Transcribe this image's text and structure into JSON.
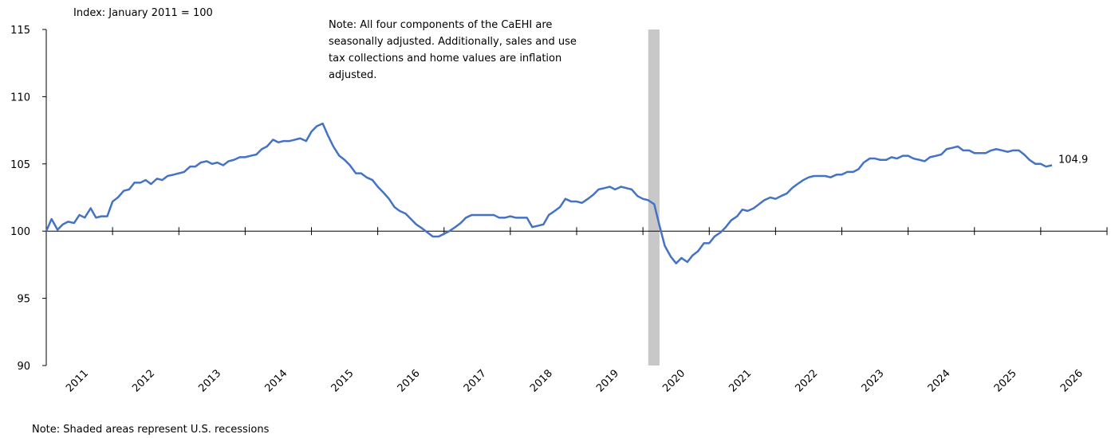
{
  "chart_data": {
    "type": "line",
    "y_axis_label": "Index: January 2011 = 100",
    "note_lines": [
      "Note: All four components of the CaEHI are",
      "seasonally adjusted. Additionally, sales and use",
      "tax collections and home values are inflation",
      "adjusted."
    ],
    "footnote": "Note: Shaded areas represent U.S. recessions",
    "shaded_regions": [
      [
        2020.08,
        2020.25
      ]
    ],
    "shade_color": "#c8c8c8",
    "xlim": [
      2011,
      2027
    ],
    "xticks": [
      {
        "value": 2011.5,
        "label": "2011"
      },
      {
        "value": 2012.5,
        "label": "2012"
      },
      {
        "value": 2013.5,
        "label": "2013"
      },
      {
        "value": 2014.5,
        "label": "2014"
      },
      {
        "value": 2015.5,
        "label": "2015"
      },
      {
        "value": 2016.5,
        "label": "2016"
      },
      {
        "value": 2017.5,
        "label": "2017"
      },
      {
        "value": 2018.5,
        "label": "2018"
      },
      {
        "value": 2019.5,
        "label": "2019"
      },
      {
        "value": 2020.5,
        "label": "2020"
      },
      {
        "value": 2021.5,
        "label": "2021"
      },
      {
        "value": 2022.5,
        "label": "2022"
      },
      {
        "value": 2023.5,
        "label": "2023"
      },
      {
        "value": 2024.5,
        "label": "2024"
      },
      {
        "value": 2025.5,
        "label": "2025"
      },
      {
        "value": 2026.5,
        "label": "2026"
      }
    ],
    "ylim": [
      90,
      115
    ],
    "yticks": [
      90,
      95,
      100,
      105,
      110,
      115
    ],
    "x_axis_crosses": 100,
    "x": [
      2011.0,
      2011.08,
      2011.17,
      2011.25,
      2011.33,
      2011.42,
      2011.5,
      2011.58,
      2011.67,
      2011.75,
      2011.83,
      2011.92,
      2012.0,
      2012.08,
      2012.17,
      2012.25,
      2012.33,
      2012.42,
      2012.5,
      2012.58,
      2012.67,
      2012.75,
      2012.83,
      2012.92,
      2013.0,
      2013.08,
      2013.17,
      2013.25,
      2013.33,
      2013.42,
      2013.5,
      2013.58,
      2013.67,
      2013.75,
      2013.83,
      2013.92,
      2014.0,
      2014.08,
      2014.17,
      2014.25,
      2014.33,
      2014.42,
      2014.5,
      2014.58,
      2014.67,
      2014.75,
      2014.83,
      2014.92,
      2015.0,
      2015.08,
      2015.17,
      2015.25,
      2015.33,
      2015.42,
      2015.5,
      2015.58,
      2015.67,
      2015.75,
      2015.83,
      2015.92,
      2016.0,
      2016.08,
      2016.17,
      2016.25,
      2016.33,
      2016.42,
      2016.5,
      2016.58,
      2016.67,
      2016.75,
      2016.83,
      2016.92,
      2017.0,
      2017.08,
      2017.17,
      2017.25,
      2017.33,
      2017.42,
      2017.5,
      2017.58,
      2017.67,
      2017.75,
      2017.83,
      2017.92,
      2018.0,
      2018.08,
      2018.17,
      2018.25,
      2018.33,
      2018.42,
      2018.5,
      2018.58,
      2018.67,
      2018.75,
      2018.83,
      2018.92,
      2019.0,
      2019.08,
      2019.17,
      2019.25,
      2019.33,
      2019.42,
      2019.5,
      2019.58,
      2019.67,
      2019.75,
      2019.83,
      2019.92,
      2020.0,
      2020.08,
      2020.17,
      2020.25,
      2020.33,
      2020.42,
      2020.5,
      2020.58,
      2020.67,
      2020.75,
      2020.83,
      2020.92,
      2021.0,
      2021.08,
      2021.17,
      2021.25,
      2021.33,
      2021.42,
      2021.5,
      2021.58,
      2021.67,
      2021.75,
      2021.83,
      2021.92,
      2022.0,
      2022.08,
      2022.17,
      2022.25,
      2022.33,
      2022.42,
      2022.5,
      2022.58,
      2022.67,
      2022.75,
      2022.83,
      2022.92,
      2023.0,
      2023.08,
      2023.17,
      2023.25,
      2023.33,
      2023.42,
      2023.5,
      2023.58,
      2023.67,
      2023.75,
      2023.83,
      2023.92,
      2024.0,
      2024.08,
      2024.17,
      2024.25,
      2024.33,
      2024.42,
      2024.5,
      2024.58,
      2024.67,
      2024.75,
      2024.83,
      2024.92,
      2025.0,
      2025.08,
      2025.17,
      2025.25,
      2025.33,
      2025.42,
      2025.5,
      2025.58,
      2025.67,
      2025.75,
      2025.83,
      2025.92,
      2026.0,
      2026.08,
      2026.17
    ],
    "series": [
      {
        "color": "#4472c4",
        "values": [
          100.0,
          100.9,
          100.1,
          100.5,
          100.7,
          100.6,
          101.2,
          101.0,
          101.7,
          101.0,
          101.1,
          101.1,
          102.2,
          102.5,
          103.0,
          103.1,
          103.6,
          103.6,
          103.8,
          103.5,
          103.9,
          103.8,
          104.1,
          104.2,
          104.3,
          104.4,
          104.8,
          104.8,
          105.1,
          105.2,
          105.0,
          105.1,
          104.9,
          105.2,
          105.3,
          105.5,
          105.5,
          105.6,
          105.7,
          106.1,
          106.3,
          106.8,
          106.6,
          106.7,
          106.7,
          106.8,
          106.9,
          106.7,
          107.4,
          107.8,
          108.0,
          107.1,
          106.3,
          105.6,
          105.3,
          104.9,
          104.3,
          104.3,
          104.0,
          103.8,
          103.3,
          102.9,
          102.4,
          101.8,
          101.5,
          101.3,
          100.9,
          100.5,
          100.2,
          99.9,
          99.6,
          99.6,
          99.8,
          100.0,
          100.3,
          100.6,
          101.0,
          101.2,
          101.2,
          101.2,
          101.2,
          101.2,
          101.0,
          101.0,
          101.1,
          101.0,
          101.0,
          101.0,
          100.3,
          100.4,
          100.5,
          101.2,
          101.5,
          101.8,
          102.4,
          102.2,
          102.2,
          102.1,
          102.4,
          102.7,
          103.1,
          103.2,
          103.3,
          103.1,
          103.3,
          103.2,
          103.1,
          102.6,
          102.4,
          102.3,
          102.0,
          100.4,
          98.9,
          98.1,
          97.6,
          98.0,
          97.7,
          98.2,
          98.5,
          99.1,
          99.1,
          99.6,
          99.9,
          100.3,
          100.8,
          101.1,
          101.6,
          101.5,
          101.7,
          102.0,
          102.3,
          102.5,
          102.4,
          102.6,
          102.8,
          103.2,
          103.5,
          103.8,
          104.0,
          104.1,
          104.1,
          104.1,
          104.0,
          104.2,
          104.2,
          104.4,
          104.4,
          104.6,
          105.1,
          105.4,
          105.4,
          105.3,
          105.3,
          105.5,
          105.4,
          105.6,
          105.6,
          105.4,
          105.3,
          105.2,
          105.5,
          105.6,
          105.7,
          106.1,
          106.2,
          106.3,
          106.0,
          106.0,
          105.8,
          105.8,
          105.8,
          106.0,
          106.1,
          106.0,
          105.9,
          106.0,
          106.0,
          105.7,
          105.3,
          105.0,
          105.0,
          104.8,
          104.9
        ]
      }
    ]
  }
}
